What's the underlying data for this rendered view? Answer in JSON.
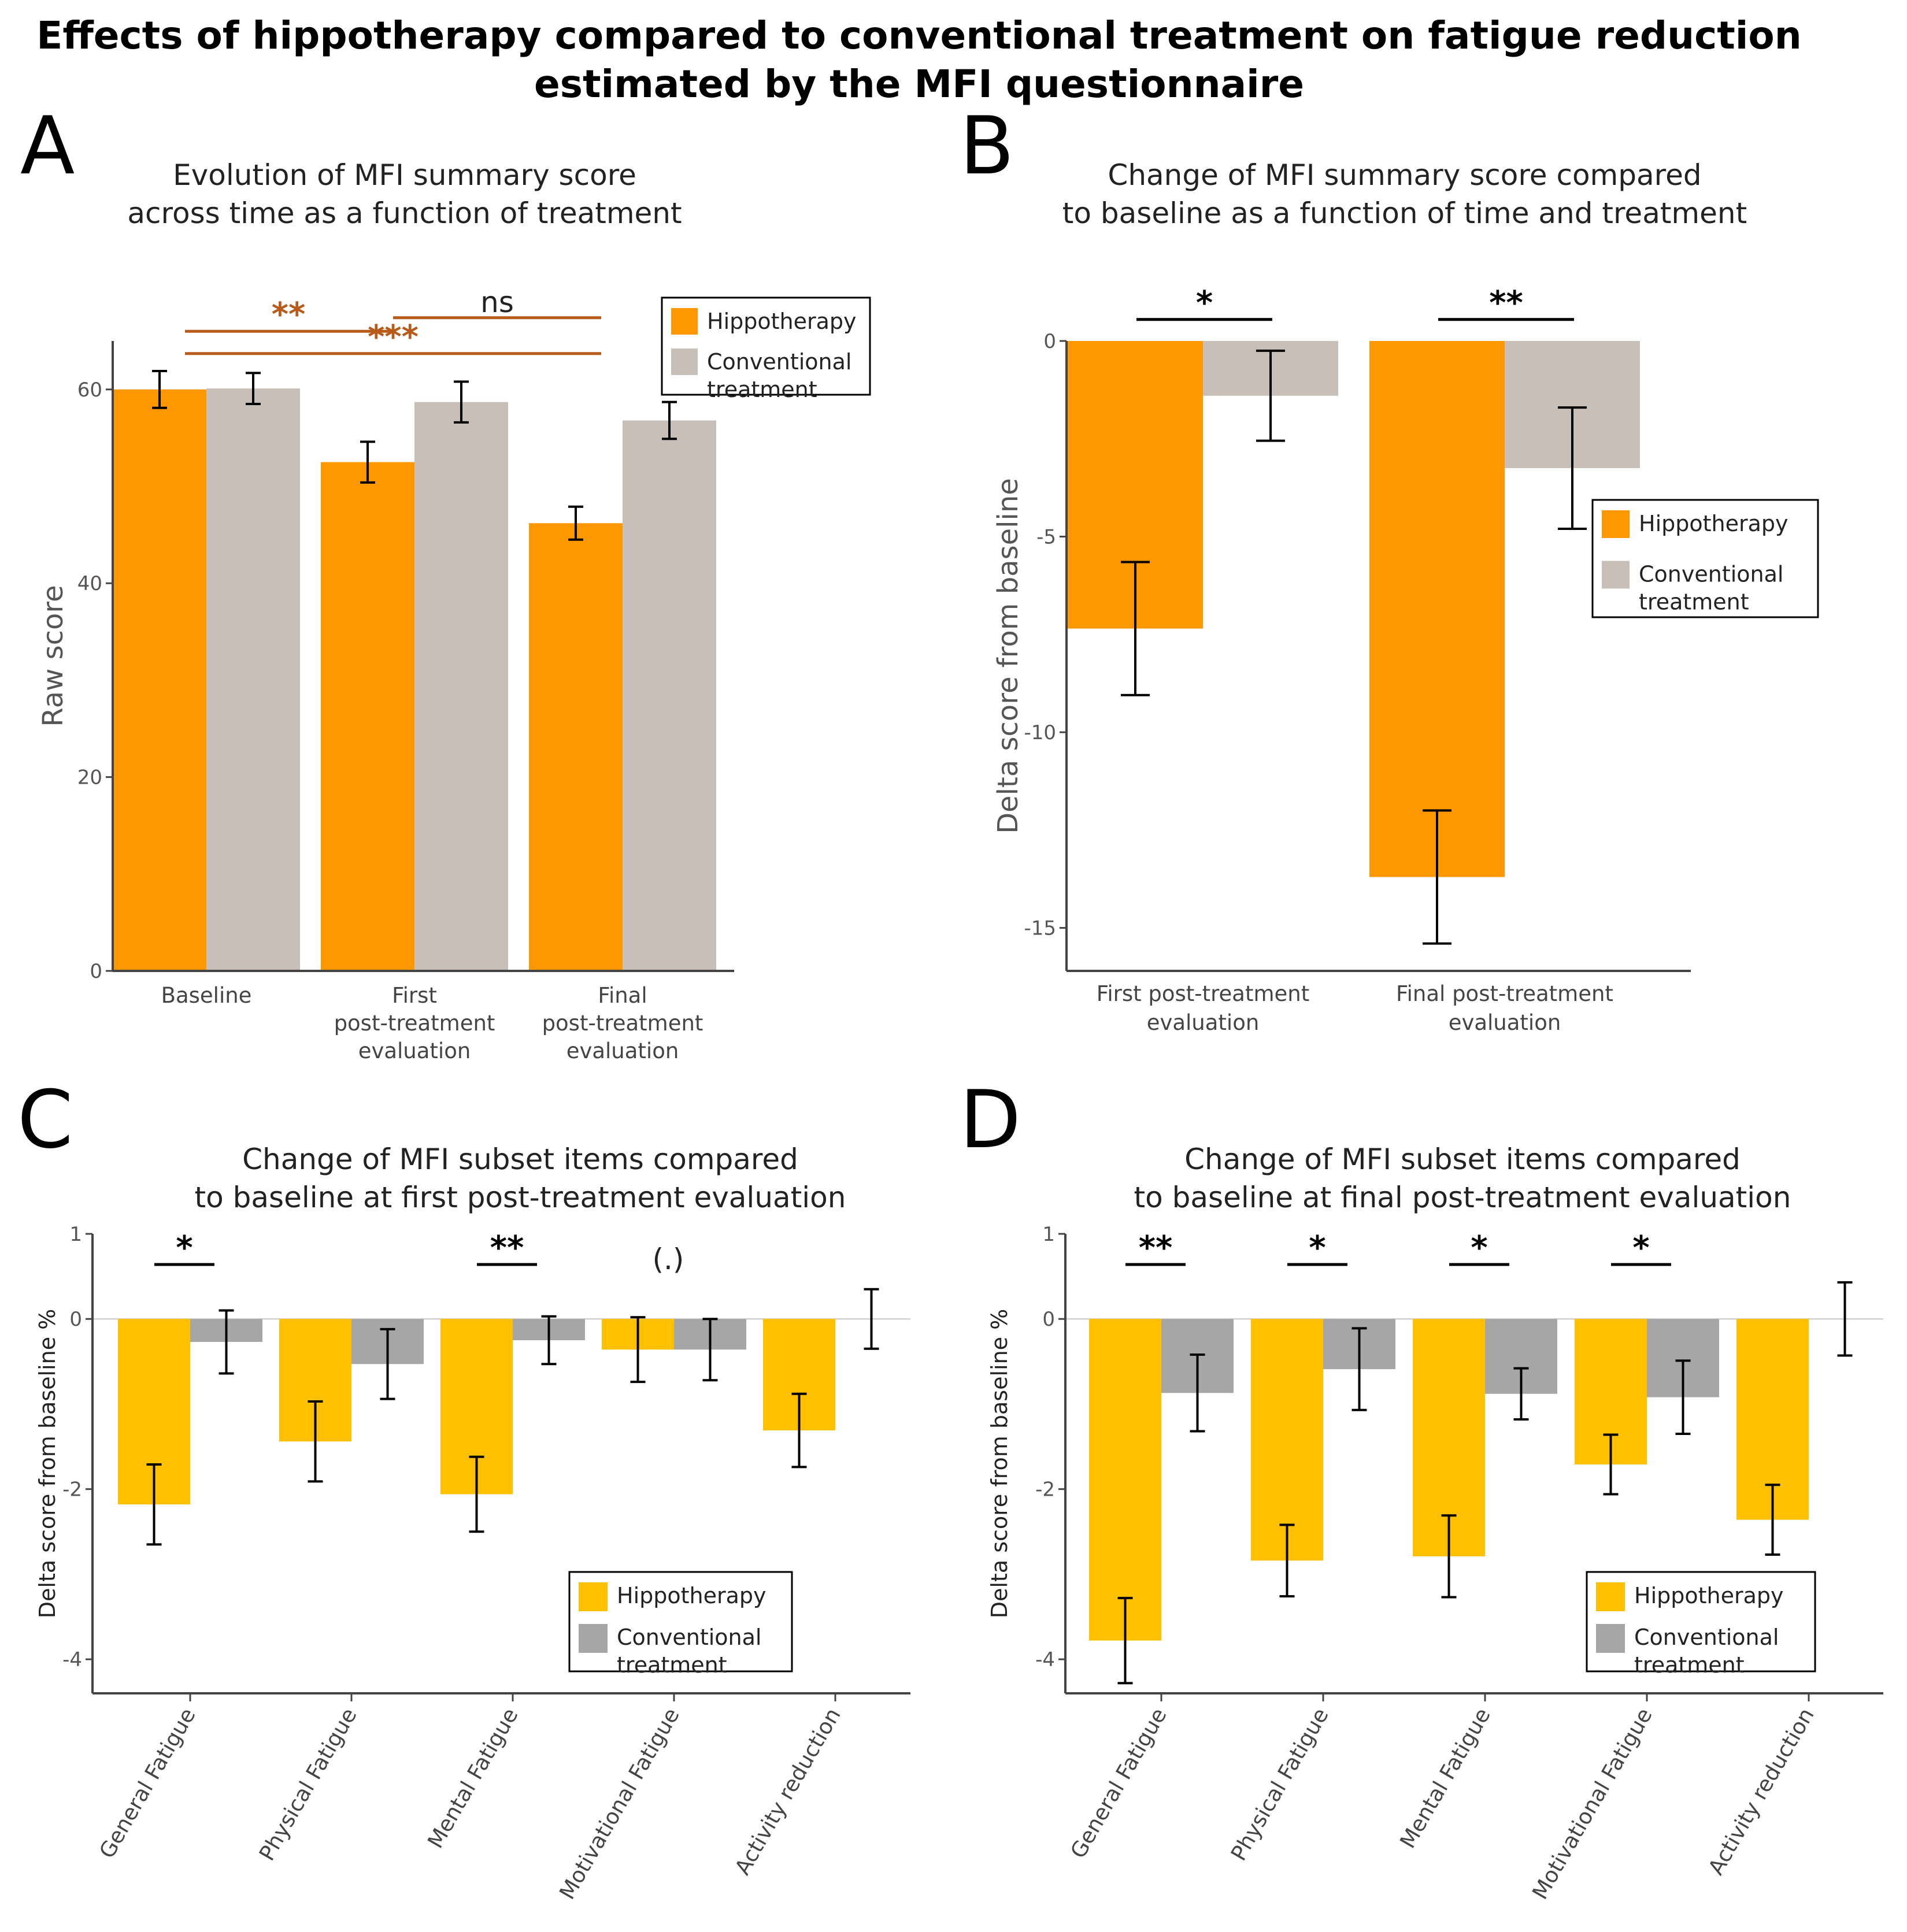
{
  "title_line1": "Effects of hippotherapy compared to conventional treatment on fatigue reduction",
  "title_line2": "estimated by the MFI questionnaire",
  "colors": {
    "hippo_orange": "#ff9800",
    "conv_taupe": "#c8bfb8",
    "hippo_yellow": "#ffc000",
    "conv_gray": "#a6a6a6",
    "sig_brown": "#b85a1a"
  },
  "chart_data": [
    {
      "id": "A",
      "type": "bar",
      "letter": "A",
      "title_lines": [
        "Evolution of MFI summary score",
        "across time as a function of treatment"
      ],
      "ylabel": "Raw score",
      "xlabel": "",
      "ylim": [
        0,
        65
      ],
      "yticks": [
        0,
        20,
        40,
        60
      ],
      "categories": [
        [
          "Baseline"
        ],
        [
          "First",
          "post-treatment",
          "evaluation"
        ],
        [
          "Final",
          "post-treatment",
          "evaluation"
        ]
      ],
      "series": [
        {
          "name": "Hippotherapy",
          "color": "#ff9800",
          "values": [
            60,
            52.5,
            46.2
          ],
          "err": [
            1.9,
            2.1,
            1.7
          ]
        },
        {
          "name": "Conventional treatment",
          "color": "#c8bfb8",
          "values": [
            60.1,
            58.7,
            56.8
          ],
          "err": [
            1.6,
            2.1,
            1.9
          ]
        }
      ],
      "legend_lines": [
        [
          "Hippotherapy"
        ],
        [
          "Conventional",
          "treatment"
        ]
      ],
      "significance": [
        {
          "label": "**",
          "from": 0,
          "to": 1,
          "level": 66
        },
        {
          "label": "ns",
          "from": 1,
          "to": 2,
          "level": 67.4
        },
        {
          "label": "***",
          "from": 0,
          "to": 2,
          "level": 63.7
        }
      ]
    },
    {
      "id": "B",
      "type": "bar",
      "letter": "B",
      "title_lines": [
        "Change of MFI summary score compared",
        "to baseline as a function of time and treatment"
      ],
      "ylabel": "Delta score from baseline",
      "xlabel": "",
      "ylim": [
        -16.1,
        0
      ],
      "yticks": [
        0,
        -5,
        -10,
        -15
      ],
      "categories": [
        [
          "First post-treatment",
          "evaluation"
        ],
        [
          "Final post-treatment",
          "evaluation"
        ]
      ],
      "series": [
        {
          "name": "Hippotherapy",
          "color": "#ff9800",
          "values": [
            -7.35,
            -13.7
          ],
          "err": [
            1.7,
            1.7
          ]
        },
        {
          "name": "Conventional treatment",
          "color": "#c8bfb8",
          "values": [
            -1.4,
            -3.25
          ],
          "err": [
            1.15,
            1.55
          ]
        }
      ],
      "legend_lines": [
        [
          "Hippotherapy"
        ],
        [
          "Conventional",
          "treatment"
        ]
      ],
      "significance": [
        {
          "label": "*",
          "group": 0,
          "level": 0.55
        },
        {
          "label": "**",
          "group": 1,
          "level": 0.55
        }
      ]
    },
    {
      "id": "C",
      "type": "bar",
      "letter": "C",
      "title_lines": [
        "Change of MFI subset items compared",
        "to baseline at first post-treatment evaluation"
      ],
      "ylabel": "Delta score from baseline %",
      "xlabel": "",
      "ylim": [
        -4.4,
        1
      ],
      "yticks": [
        1,
        0,
        -2,
        -4
      ],
      "categories": [
        "General Fatigue",
        "Physical Fatigue",
        "Mental Fatigue",
        "Motivational Fatigue",
        "Activity reduction"
      ],
      "series": [
        {
          "name": "Hippotherapy",
          "color": "#ffc000",
          "values": [
            -2.18,
            -1.44,
            -2.06,
            -0.36,
            -1.31
          ],
          "err": [
            0.47,
            0.47,
            0.44,
            0.38,
            0.43
          ]
        },
        {
          "name": "Conventional treatment",
          "color": "#a6a6a6",
          "values": [
            -0.27,
            -0.53,
            -0.25,
            -0.36,
            0
          ],
          "err": [
            0.37,
            0.41,
            0.28,
            0.36,
            0.35
          ]
        }
      ],
      "legend_lines": [
        [
          "Hippotherapy"
        ],
        [
          "Conventional",
          "treatment"
        ]
      ],
      "significance": [
        {
          "label": "*",
          "group": 0,
          "level": 0.64
        },
        {
          "label": "**",
          "group": 2,
          "level": 0.64
        },
        {
          "label": "(.)",
          "group": 3,
          "level": 0.72,
          "no_line": true
        }
      ]
    },
    {
      "id": "D",
      "type": "bar",
      "letter": "D",
      "title_lines": [
        "Change of MFI subset items compared",
        "to baseline at final post-treatment evaluation"
      ],
      "ylabel": "Delta score from baseline %",
      "xlabel": "",
      "ylim": [
        -4.4,
        1
      ],
      "yticks": [
        1,
        0,
        -2,
        -4
      ],
      "categories": [
        "General Fatigue",
        "Physical Fatigue",
        "Mental Fatigue",
        "Motivational Fatigue",
        "Activity reduction"
      ],
      "series": [
        {
          "name": "Hippotherapy",
          "color": "#ffc000",
          "values": [
            -3.78,
            -2.84,
            -2.79,
            -1.71,
            -2.36
          ],
          "err": [
            0.5,
            0.42,
            0.48,
            0.35,
            0.41
          ]
        },
        {
          "name": "Conventional treatment",
          "color": "#a6a6a6",
          "values": [
            -0.87,
            -0.59,
            -0.88,
            -0.92,
            0
          ],
          "err": [
            0.45,
            0.48,
            0.3,
            0.43,
            0.43
          ]
        }
      ],
      "legend_lines": [
        [
          "Hippotherapy"
        ],
        [
          "Conventional",
          "treatment"
        ]
      ],
      "significance": [
        {
          "label": "**",
          "group": 0,
          "level": 0.64
        },
        {
          "label": "*",
          "group": 1,
          "level": 0.64
        },
        {
          "label": "*",
          "group": 2,
          "level": 0.64
        },
        {
          "label": "*",
          "group": 3,
          "level": 0.64
        }
      ]
    }
  ]
}
